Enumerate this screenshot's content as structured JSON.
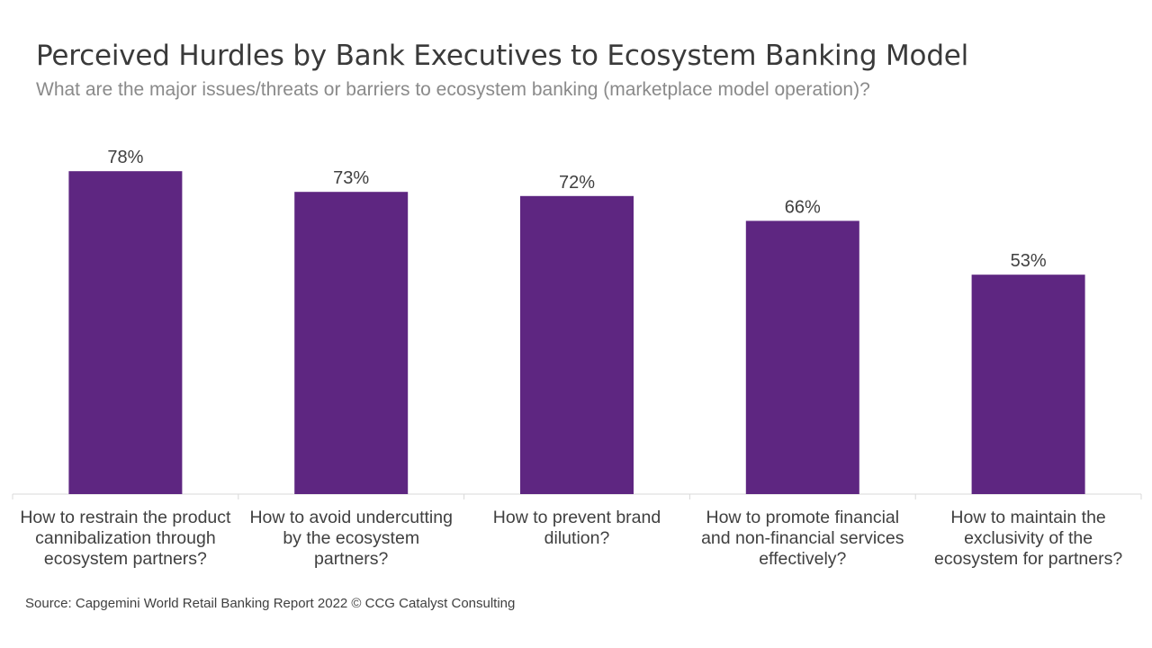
{
  "title": "Perceived Hurdles by Bank Executives to Ecosystem Banking Model",
  "subtitle": "What are the major issues/threats or barriers to ecosystem banking (marketplace model operation)?",
  "source": "Source: Capgemini World Retail Banking Report 2022 © CCG Catalyst Consulting",
  "chart_data": {
    "type": "bar",
    "categories": [
      [
        "How to restrain the product",
        "cannibalization through",
        "ecosystem partners?"
      ],
      [
        "How to avoid undercutting",
        "by the ecosystem",
        "partners?"
      ],
      [
        "How to prevent brand",
        "dilution?"
      ],
      [
        "How to promote financial",
        "and non-financial services",
        "effectively?"
      ],
      [
        "How to maintain the",
        "exclusivity of the",
        "ecosystem for partners?"
      ]
    ],
    "values": [
      78,
      73,
      72,
      66,
      53
    ],
    "value_labels": [
      "78%",
      "73%",
      "72%",
      "66%",
      "53%"
    ],
    "ylim": [
      0,
      100
    ],
    "grid": false,
    "legend": "none",
    "bar_color": "#5e2681",
    "label_color": "#404040",
    "axis_color": "#d9d9d9"
  }
}
